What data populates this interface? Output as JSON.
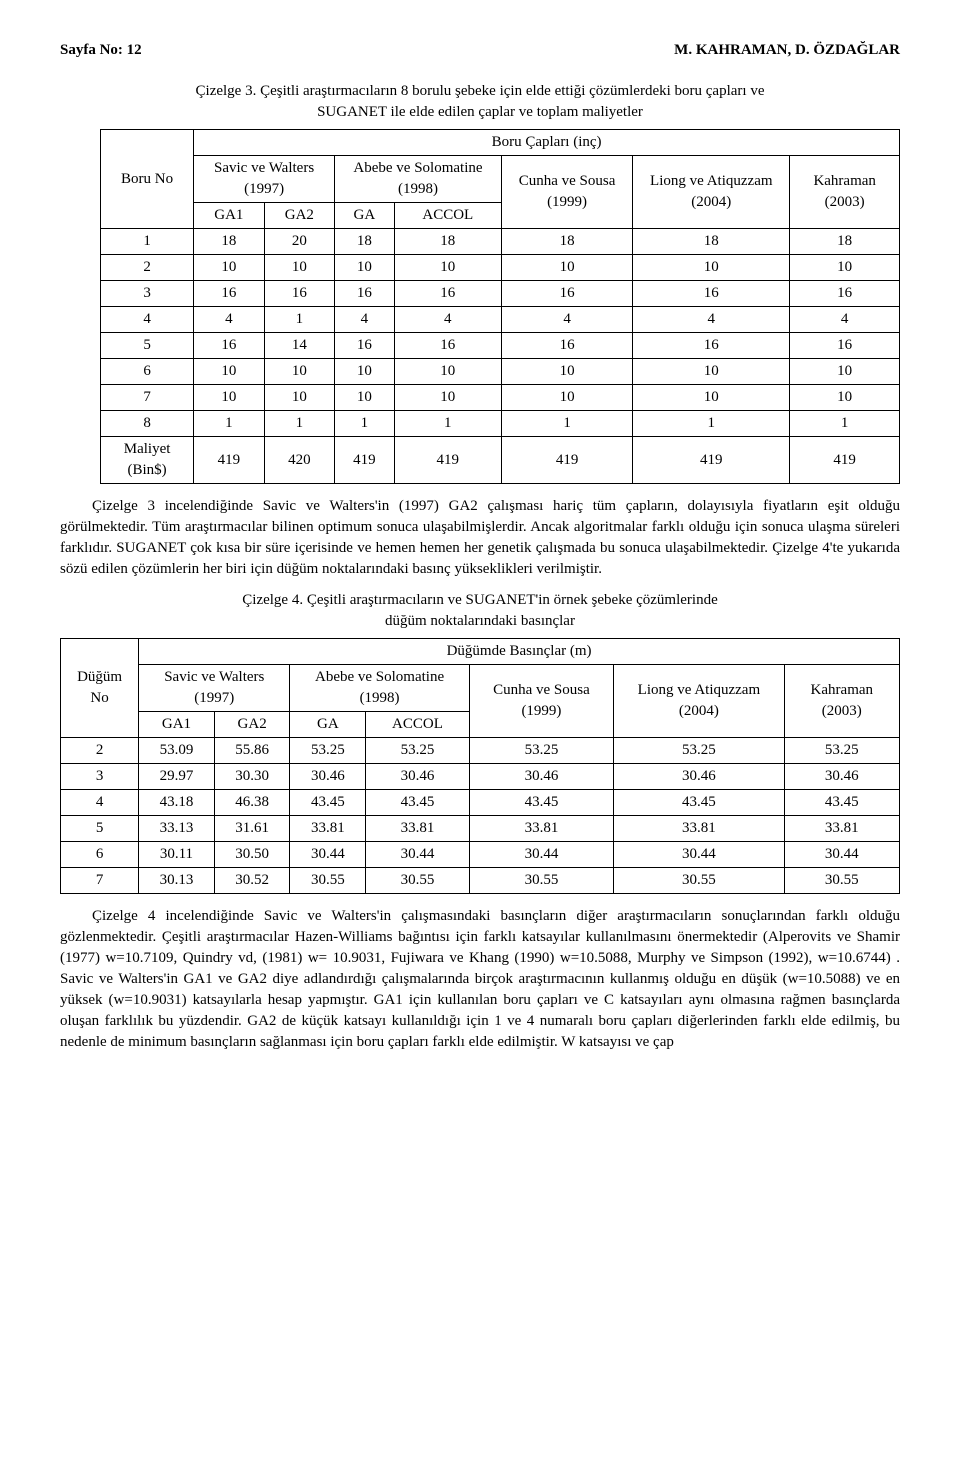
{
  "header": {
    "page_label": "Sayfa No: 12",
    "authors": "M. KAHRAMAN, D. ÖZDAĞLAR"
  },
  "table3": {
    "caption_line1": "Çizelge 3. Çeşitli araştırmacıların 8 borulu şebeke için elde ettiği çözümlerdeki boru çapları ve",
    "caption_line2": "SUGANET ile elde edilen çaplar ve toplam maliyetler",
    "head": {
      "boru_no": "Boru No",
      "group": "Boru Çapları (inç)",
      "savic": "Savic ve Walters (1997)",
      "abebe": "Abebe ve Solomatine (1998)",
      "cunha": "Cunha ve Sousa (1999)",
      "liong": "Liong ve Atiquzzam (2004)",
      "kahraman": "Kahraman (2003)",
      "ga1": "GA1",
      "ga2": "GA2",
      "ga": "GA",
      "accol": "ACCOL",
      "maliyet": "Maliyet (Bin$)"
    },
    "rows": [
      {
        "id": "1",
        "c": [
          "18",
          "20",
          "18",
          "18",
          "18",
          "18",
          "18"
        ]
      },
      {
        "id": "2",
        "c": [
          "10",
          "10",
          "10",
          "10",
          "10",
          "10",
          "10"
        ]
      },
      {
        "id": "3",
        "c": [
          "16",
          "16",
          "16",
          "16",
          "16",
          "16",
          "16"
        ]
      },
      {
        "id": "4",
        "c": [
          "4",
          "1",
          "4",
          "4",
          "4",
          "4",
          "4"
        ]
      },
      {
        "id": "5",
        "c": [
          "16",
          "14",
          "16",
          "16",
          "16",
          "16",
          "16"
        ]
      },
      {
        "id": "6",
        "c": [
          "10",
          "10",
          "10",
          "10",
          "10",
          "10",
          "10"
        ]
      },
      {
        "id": "7",
        "c": [
          "10",
          "10",
          "10",
          "10",
          "10",
          "10",
          "10"
        ]
      },
      {
        "id": "8",
        "c": [
          "1",
          "1",
          "1",
          "1",
          "1",
          "1",
          "1"
        ]
      }
    ],
    "maliyet_row": [
      "419",
      "420",
      "419",
      "419",
      "419",
      "419",
      "419"
    ]
  },
  "para1": "Çizelge 3 incelendiğinde Savic ve Walters'in (1997) GA2 çalışması hariç tüm çapların, dolayısıyla fiyatların eşit olduğu görülmektedir. Tüm araştırmacılar bilinen optimum sonuca ulaşabilmişlerdir. Ancak algoritmalar farklı olduğu için sonuca ulaşma süreleri farklıdır. SUGANET çok kısa bir süre içerisinde ve hemen hemen her genetik çalışmada bu sonuca ulaşabilmektedir. Çizelge 4'te yukarıda sözü edilen çözümlerin her biri için düğüm noktalarındaki basınç yükseklikleri verilmiştir.",
  "table4": {
    "caption_line1": "Çizelge 4. Çeşitli araştırmacıların ve SUGANET'in örnek şebeke çözümlerinde",
    "caption_line2": "düğüm noktalarındaki basınçlar",
    "head": {
      "dugum_no": "Düğüm No",
      "group": "Düğümde Basınçlar (m)",
      "savic": "Savic ve Walters (1997)",
      "abebe": "Abebe ve Solomatine (1998)",
      "cunha": "Cunha ve Sousa (1999)",
      "liong": "Liong ve Atiquzzam (2004)",
      "kahraman": "Kahraman (2003)",
      "ga1": "GA1",
      "ga2": "GA2",
      "ga": "GA",
      "accol": "ACCOL"
    },
    "rows": [
      {
        "id": "2",
        "c": [
          "53.09",
          "55.86",
          "53.25",
          "53.25",
          "53.25",
          "53.25",
          "53.25"
        ]
      },
      {
        "id": "3",
        "c": [
          "29.97",
          "30.30",
          "30.46",
          "30.46",
          "30.46",
          "30.46",
          "30.46"
        ]
      },
      {
        "id": "4",
        "c": [
          "43.18",
          "46.38",
          "43.45",
          "43.45",
          "43.45",
          "43.45",
          "43.45"
        ]
      },
      {
        "id": "5",
        "c": [
          "33.13",
          "31.61",
          "33.81",
          "33.81",
          "33.81",
          "33.81",
          "33.81"
        ]
      },
      {
        "id": "6",
        "c": [
          "30.11",
          "30.50",
          "30.44",
          "30.44",
          "30.44",
          "30.44",
          "30.44"
        ]
      },
      {
        "id": "7",
        "c": [
          "30.13",
          "30.52",
          "30.55",
          "30.55",
          "30.55",
          "30.55",
          "30.55"
        ]
      }
    ]
  },
  "para2": "Çizelge 4 incelendiğinde Savic ve Walters'in çalışmasındaki basınçların diğer araştırmacıların sonuçlarından farklı olduğu gözlenmektedir. Çeşitli araştırmacılar Hazen-Williams bağıntısı için farklı katsayılar kullanılmasını önermektedir (Alperovits ve Shamir (1977) w=10.7109, Quindry vd, (1981) w= 10.9031, Fujiwara ve Khang (1990) w=10.5088, Murphy ve Simpson (1992), w=10.6744) . Savic ve Walters'in GA1 ve GA2 diye adlandırdığı çalışmalarında birçok araştırmacının kullanmış olduğu en düşük (w=10.5088) ve en yüksek (w=10.9031) katsayılarla hesap yapmıştır. GA1 için kullanılan boru çapları ve C katsayıları aynı olmasına rağmen basınçlarda oluşan farklılık bu yüzdendir. GA2 de küçük katsayı kullanıldığı için 1 ve 4 numaralı boru çapları diğerlerinden farklı elde edilmiş, bu nedenle de minimum basınçların sağlanması için boru çapları farklı elde edilmiştir. W katsayısı ve çap"
}
